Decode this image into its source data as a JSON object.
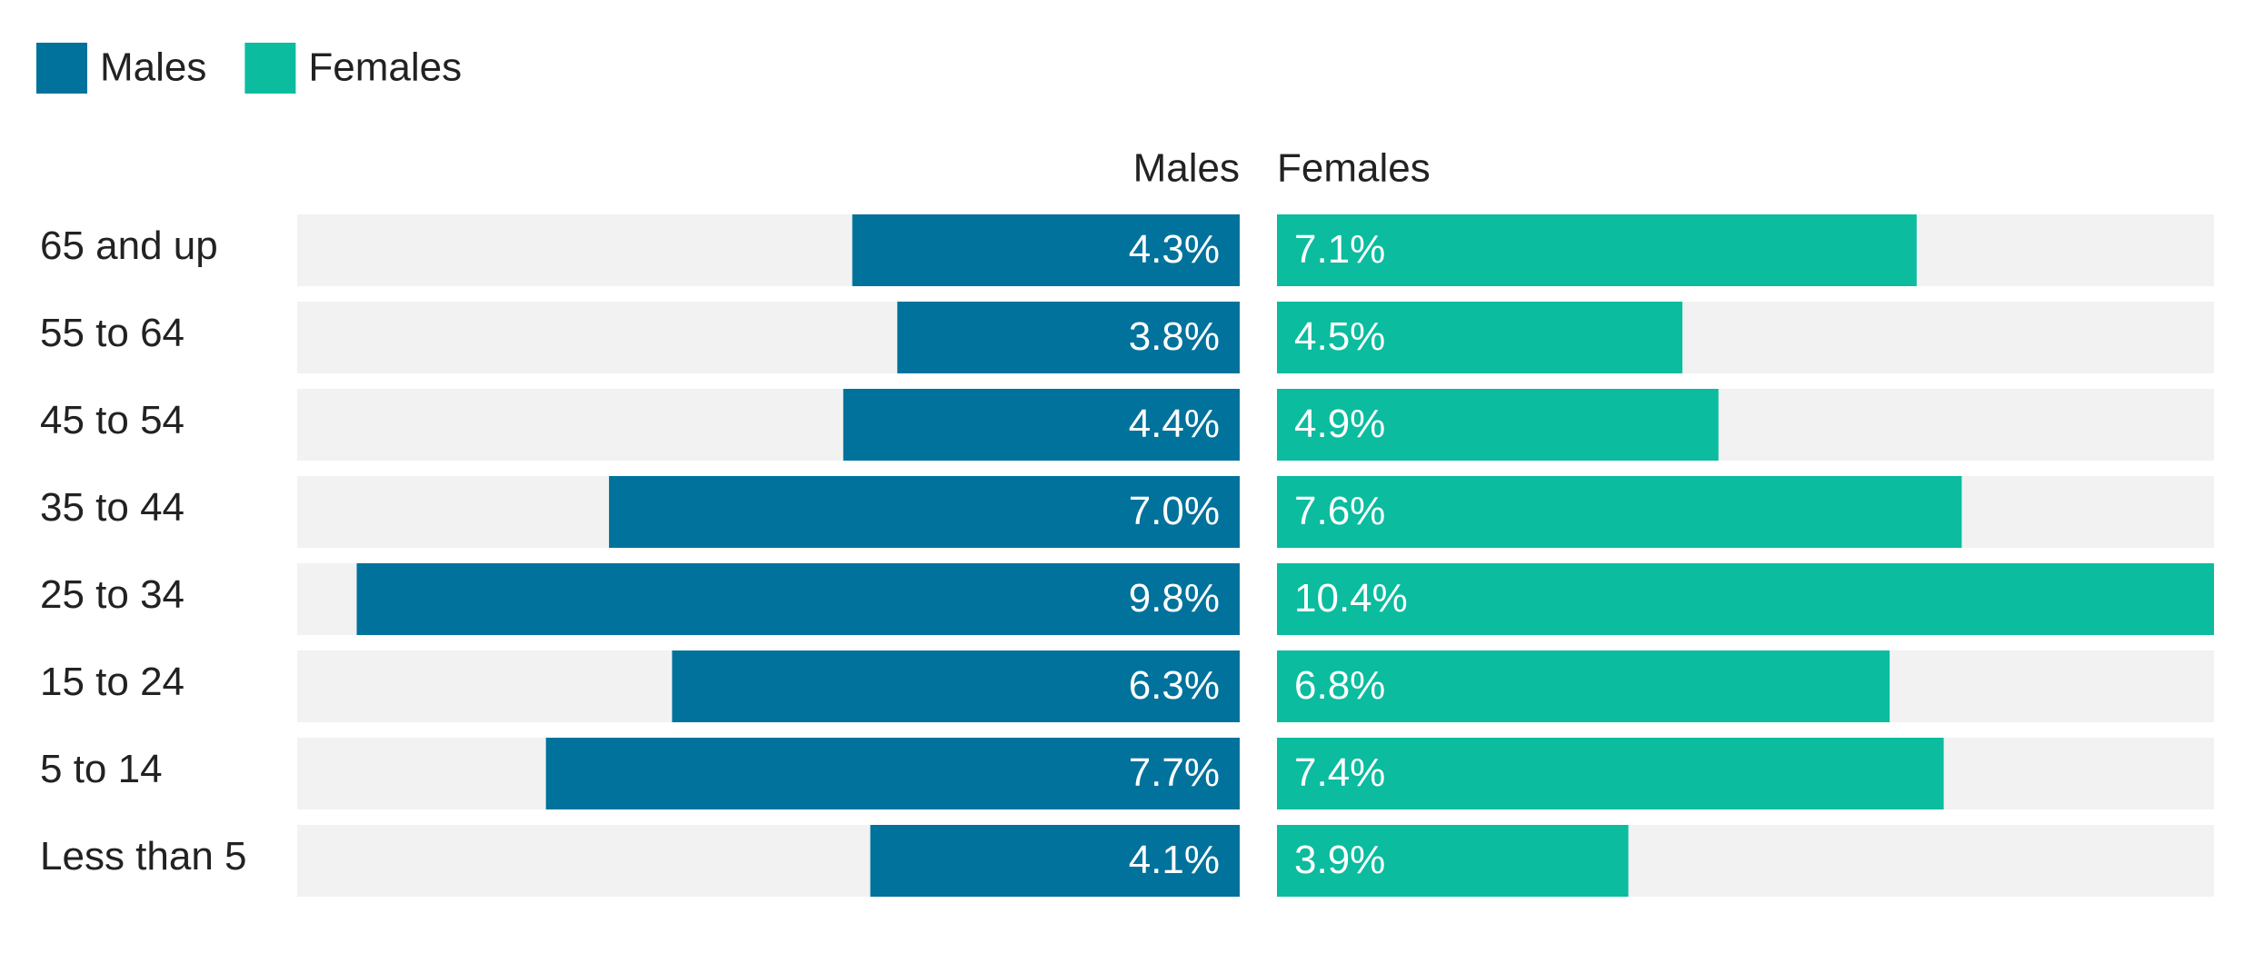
{
  "chart_data": {
    "type": "butterfly",
    "categories": [
      "65 and up",
      "55 to 64",
      "45 to 54",
      "35 to 44",
      "25 to 34",
      "15 to 24",
      "5 to 14",
      "Less than 5"
    ],
    "series": [
      {
        "name": "Males",
        "color": "#00729c",
        "values": [
          4.3,
          3.8,
          4.4,
          7.0,
          9.8,
          6.3,
          7.7,
          4.1
        ],
        "value_labels": [
          "4.3%",
          "3.8%",
          "4.4%",
          "7.0%",
          "9.8%",
          "6.3%",
          "7.7%",
          "4.1%"
        ]
      },
      {
        "name": "Females",
        "color": "#0bbc9f",
        "values": [
          7.1,
          4.5,
          4.9,
          7.6,
          10.4,
          6.8,
          7.4,
          3.9
        ],
        "value_labels": [
          "7.1%",
          "4.5%",
          "4.9%",
          "7.6%",
          "10.4%",
          "6.8%",
          "7.4%",
          "3.9%"
        ]
      }
    ],
    "legend": "top-left"
  }
}
